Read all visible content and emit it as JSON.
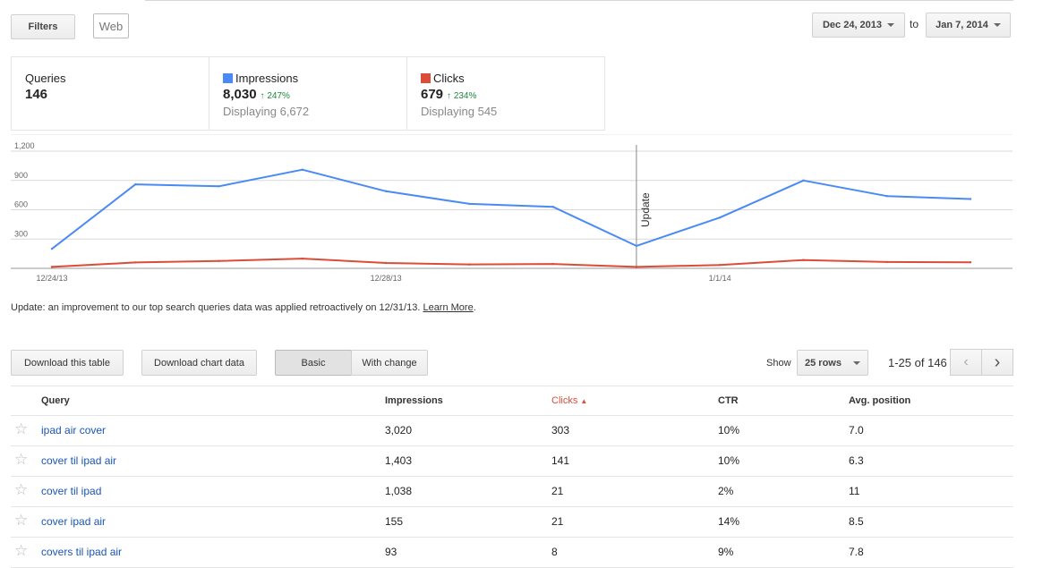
{
  "toolbar": {
    "filters_label": "Filters",
    "web_label": "Web",
    "date_from": "Dec 24, 2013",
    "to_label": "to",
    "date_to": "Jan 7, 2014"
  },
  "summary": {
    "queries": {
      "label": "Queries",
      "value": "146"
    },
    "impressions": {
      "label": "Impressions",
      "value": "8,030",
      "change": "247%",
      "displaying": "Displaying 6,672",
      "color": "#4a8af4"
    },
    "clicks": {
      "label": "Clicks",
      "value": "679",
      "change": "234%",
      "displaying": "Displaying 545",
      "color": "#dd4b39"
    }
  },
  "chart_data": {
    "type": "line",
    "x": [
      "12/24/13",
      "12/25/13",
      "12/26/13",
      "12/27/13",
      "12/28/13",
      "12/29/13",
      "12/30/13",
      "12/31/13",
      "1/1/14",
      "1/2/14",
      "1/3/14",
      "1/4/14"
    ],
    "xticks": [
      "12/24/13",
      "12/28/13",
      "1/1/14"
    ],
    "yticks": [
      "1,200",
      "900",
      "600",
      "300"
    ],
    "ylim": [
      0,
      1200
    ],
    "series": [
      {
        "name": "Impressions",
        "color": "#4a8af4",
        "values": [
          200,
          860,
          840,
          1010,
          790,
          660,
          630,
          230,
          520,
          900,
          740,
          710
        ]
      },
      {
        "name": "Clicks",
        "color": "#dd4b39",
        "values": [
          15,
          60,
          75,
          100,
          55,
          40,
          45,
          15,
          35,
          85,
          65,
          62
        ]
      }
    ],
    "annotation": {
      "label": "Update",
      "x": "12/31/13"
    },
    "grid": true
  },
  "note": {
    "text": "Update: an improvement to our top search queries data was applied retroactively on 12/31/13.",
    "link": "Learn More",
    "trail": "."
  },
  "actions": {
    "download_table": "Download this table",
    "download_chart": "Download chart data",
    "basic": "Basic",
    "with_change": "With change",
    "show_label": "Show",
    "rows_select": "25 rows",
    "range": "1-25 of 146"
  },
  "table": {
    "headers": {
      "query": "Query",
      "impressions": "Impressions",
      "clicks": "Clicks",
      "ctr": "CTR",
      "position": "Avg. position"
    },
    "rows": [
      {
        "query": "ipad air cover",
        "impressions": "3,020",
        "clicks": "303",
        "ctr": "10%",
        "position": "7.0"
      },
      {
        "query": "cover til ipad air",
        "impressions": "1,403",
        "clicks": "141",
        "ctr": "10%",
        "position": "6.3"
      },
      {
        "query": "cover til ipad",
        "impressions": "1,038",
        "clicks": "21",
        "ctr": "2%",
        "position": "11"
      },
      {
        "query": "cover ipad air",
        "impressions": "155",
        "clicks": "21",
        "ctr": "14%",
        "position": "8.5"
      },
      {
        "query": "covers til ipad air",
        "impressions": "93",
        "clicks": "8",
        "ctr": "9%",
        "position": "7.8"
      }
    ]
  }
}
